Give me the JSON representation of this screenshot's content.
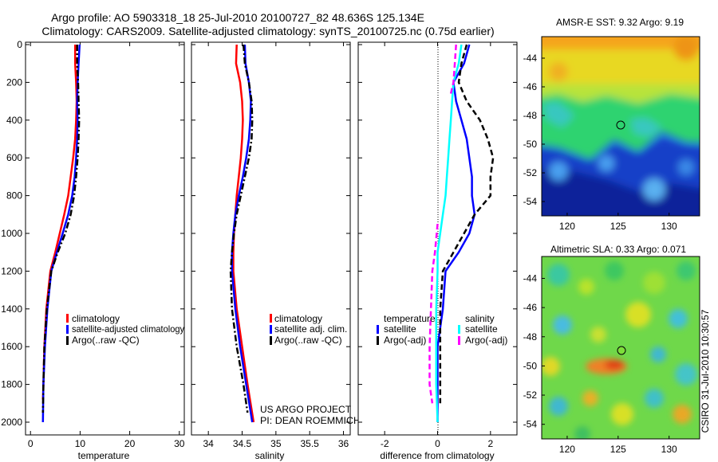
{
  "header": {
    "line1": "Argo profile: AO 5903318_18 25-Jul-2010 20100727_82 48.636S 125.134E",
    "line2": "Climatology: CARS2009. Satellite-adjusted climatology: synTS_20100725.nc (0.75d earlier)"
  },
  "credit": {
    "line1": "US ARGO PROJECT",
    "line2": "PI: DEAN ROEMMICH"
  },
  "stamp": "CSIRO 31-Jul-2010 10:30:57",
  "colors": {
    "climatology": "#ff0000",
    "satellite": "#0000ff",
    "argo": "#000000",
    "diff_satellite_salinity": "#00ffff",
    "diff_argo_salinity": "#ff00ff"
  },
  "chart_data": [
    {
      "type": "line",
      "xlabel": "temperature",
      "ylim": [
        0,
        2000
      ],
      "y_reversed": true,
      "xlim": [
        -1,
        31
      ],
      "xticks": [
        0,
        10,
        20,
        30
      ],
      "yticks": [
        0,
        200,
        400,
        600,
        800,
        1000,
        1200,
        1400,
        1600,
        1800,
        2000
      ],
      "legend": "lower-middle",
      "series": [
        {
          "name": "climatology",
          "style": "solid",
          "color": "#ff0000",
          "x": [
            9.0,
            9.0,
            9.2,
            9.3,
            9.2,
            9.0,
            8.6,
            8.1,
            7.6,
            6.8,
            5.9,
            5.0,
            4.0,
            3.2,
            2.8,
            2.6,
            2.5
          ],
          "y": [
            0,
            100,
            200,
            300,
            400,
            500,
            600,
            700,
            800,
            900,
            1000,
            1100,
            1200,
            1400,
            1600,
            1800,
            1880
          ]
        },
        {
          "name": "satellite-adjusted climatology",
          "style": "solid",
          "color": "#0000ff",
          "x": [
            9.9,
            9.7,
            9.5,
            9.4,
            9.5,
            9.4,
            9.2,
            8.9,
            8.4,
            7.6,
            6.5,
            5.3,
            4.2,
            3.4,
            2.9,
            2.6,
            2.5
          ],
          "y": [
            0,
            100,
            200,
            300,
            400,
            500,
            600,
            700,
            800,
            900,
            1000,
            1100,
            1200,
            1400,
            1600,
            1800,
            2000
          ]
        },
        {
          "name": "Argo(..raw -QC)",
          "style": "dashdot",
          "color": "#000000",
          "x": [
            9.4,
            9.4,
            9.6,
            9.7,
            9.8,
            9.7,
            9.5,
            9.2,
            8.8,
            8.1,
            7.0,
            5.5,
            4.2,
            3.3,
            2.8,
            2.6,
            2.5
          ],
          "y": [
            0,
            100,
            200,
            300,
            400,
            500,
            600,
            700,
            800,
            900,
            1000,
            1100,
            1200,
            1400,
            1600,
            1800,
            1950
          ]
        }
      ],
      "legend_entries": [
        "climatology",
        "satellite-adjusted climatology",
        "Argo(..raw -QC)"
      ]
    },
    {
      "type": "line",
      "xlabel": "salinity",
      "ylim": [
        0,
        2000
      ],
      "y_reversed": true,
      "xlim": [
        33.75,
        36.1
      ],
      "xticks": [
        34,
        34.5,
        35,
        35.5,
        36
      ],
      "xticklabels": [
        "34",
        "34.5",
        "35",
        "35.5",
        "36"
      ],
      "legend": "lower-right",
      "series": [
        {
          "name": "climatology",
          "style": "solid",
          "color": "#ff0000",
          "x": [
            34.42,
            34.41,
            34.47,
            34.5,
            34.51,
            34.5,
            34.48,
            34.45,
            34.42,
            34.4,
            34.38,
            34.37,
            34.37,
            34.42,
            34.5,
            34.58,
            34.67
          ],
          "y": [
            0,
            100,
            200,
            300,
            400,
            500,
            600,
            700,
            800,
            900,
            1000,
            1100,
            1200,
            1400,
            1600,
            1800,
            2000
          ]
        },
        {
          "name": "satellite adj. clim.",
          "style": "solid",
          "color": "#0000ff",
          "x": [
            34.54,
            34.55,
            34.6,
            34.63,
            34.62,
            34.6,
            34.56,
            34.51,
            34.45,
            34.4,
            34.37,
            34.35,
            34.35,
            34.4,
            34.47,
            34.56,
            34.65
          ],
          "y": [
            0,
            100,
            200,
            300,
            400,
            500,
            600,
            700,
            800,
            900,
            1000,
            1100,
            1200,
            1400,
            1600,
            1800,
            2000
          ]
        },
        {
          "name": "Argo(..raw -QC)",
          "style": "dashdot",
          "color": "#000000",
          "x": [
            34.52,
            34.54,
            34.6,
            34.64,
            34.65,
            34.64,
            34.6,
            34.54,
            34.48,
            34.42,
            34.38,
            34.35,
            34.33,
            34.35,
            34.42,
            34.52,
            34.58
          ],
          "y": [
            0,
            100,
            200,
            300,
            400,
            500,
            600,
            700,
            800,
            900,
            1000,
            1100,
            1200,
            1400,
            1600,
            1800,
            1950
          ]
        }
      ],
      "legend_entries": [
        "climatology",
        "satellite adj. clim.",
        "Argo(..raw -QC)"
      ]
    },
    {
      "type": "line",
      "xlabel": "difference from climatology",
      "ylim": [
        0,
        2000
      ],
      "y_reversed": true,
      "xlim": [
        -3,
        3
      ],
      "xticks": [
        -2,
        0,
        2
      ],
      "zero_line": "dotted",
      "legend": "lower",
      "legend_headers": [
        "temperature",
        "salinity"
      ],
      "series": [
        {
          "name": "satellite",
          "group": "temperature",
          "style": "solid",
          "color": "#0000ff",
          "x": [
            1.2,
            1.0,
            0.6,
            0.7,
            0.9,
            1.1,
            1.2,
            1.3,
            1.3,
            1.4,
            1.2,
            0.8,
            0.3,
            0.2,
            0.0,
            0.0,
            0.0
          ],
          "y": [
            0,
            100,
            200,
            300,
            400,
            500,
            600,
            700,
            800,
            900,
            1000,
            1100,
            1200,
            1400,
            1600,
            1800,
            2000
          ]
        },
        {
          "name": "satellite",
          "group": "salinity",
          "style": "solid",
          "color": "#00ffff",
          "x": [
            0.9,
            0.8,
            0.6,
            0.55,
            0.5,
            0.45,
            0.4,
            0.35,
            0.3,
            0.2,
            0.1,
            0.0,
            0.0,
            -0.05,
            -0.05,
            -0.05,
            0.0
          ],
          "y": [
            0,
            100,
            200,
            300,
            400,
            500,
            600,
            700,
            800,
            900,
            1000,
            1100,
            1200,
            1400,
            1600,
            1800,
            2000
          ]
        },
        {
          "name": "Argo(-adj)",
          "group": "temperature",
          "style": "dashed",
          "color": "#000000",
          "x": [
            1.1,
            0.9,
            0.8,
            1.1,
            1.6,
            1.9,
            2.1,
            2.0,
            2.0,
            1.4,
            1.0,
            0.6,
            0.2,
            0.1,
            0.1,
            0.1,
            0.1
          ],
          "y": [
            0,
            100,
            200,
            300,
            400,
            500,
            600,
            700,
            800,
            900,
            1000,
            1100,
            1200,
            1400,
            1600,
            1800,
            1900
          ]
        },
        {
          "name": "Argo(-adj)",
          "group": "salinity",
          "style": "dashed",
          "color": "#ff00ff",
          "x": [
            0.7,
            0.65,
            0.6,
            0.5,
            null,
            null,
            null,
            null,
            null,
            null,
            0.0,
            -0.1,
            -0.2,
            -0.25,
            -0.3,
            -0.3,
            -0.2
          ],
          "y": [
            0,
            100,
            200,
            260,
            300,
            400,
            500,
            600,
            700,
            800,
            950,
            1100,
            1200,
            1400,
            1600,
            1800,
            1900
          ]
        }
      ],
      "legend_entries": [
        "satellite",
        "Argo(-adj)",
        "satellite",
        "Argo(-adj)"
      ]
    },
    {
      "type": "heatmap",
      "title": "AMSR-E SST: 9.32 Argo: 9.19",
      "xlim": [
        117.5,
        133
      ],
      "ylim": [
        -55,
        -42.5
      ],
      "xticks": [
        120,
        125,
        130
      ],
      "yticks": [
        -44,
        -46,
        -48,
        -50,
        -52,
        -54
      ],
      "marker": {
        "x": 125.134,
        "y": -48.636
      },
      "description_bands": [
        "orange/yellow north",
        "green mid",
        "blue south"
      ]
    },
    {
      "type": "heatmap",
      "title": "Altimetric SLA: 0.33 Argo: 0.071",
      "xlim": [
        117.5,
        133
      ],
      "ylim": [
        -55,
        -42.5
      ],
      "xticks": [
        120,
        125,
        130
      ],
      "yticks": [
        -44,
        -46,
        -48,
        -50,
        -52,
        -54
      ],
      "marker": {
        "x": 125.134,
        "y": -48.636
      }
    }
  ]
}
